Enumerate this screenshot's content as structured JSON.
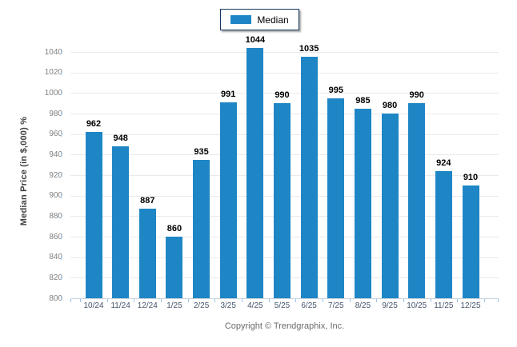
{
  "legend": {
    "label": "Median",
    "swatch_color": "#1f86c6"
  },
  "y_axis": {
    "title": "Median Price (in $,000) %",
    "tick_labels": [
      "800",
      "820",
      "840",
      "860",
      "880",
      "900",
      "920",
      "940",
      "960",
      "980",
      "1000",
      "1020",
      "1040"
    ]
  },
  "footer": {
    "copyright": "Copyright © Trendgraphix, Inc."
  },
  "chart_data": {
    "type": "bar",
    "title": "",
    "categories": [
      "10/24",
      "11/24",
      "12/24",
      "1/25",
      "2/25",
      "3/25",
      "4/25",
      "5/25",
      "6/25",
      "7/25",
      "8/25",
      "9/25",
      "10/25",
      "11/25",
      "12/25"
    ],
    "series": [
      {
        "name": "Median",
        "values": [
          962,
          948,
          887,
          860,
          935,
          991,
          1044,
          990,
          1035,
          995,
          985,
          980,
          990,
          924,
          910
        ],
        "color": "#1f86c6"
      }
    ],
    "xlabel": "",
    "ylabel": "Median Price (in $,000) %",
    "ylim": [
      800,
      1050
    ],
    "ytick_step": 20,
    "grid": true,
    "data_labels": true,
    "legend_position": "top-center"
  }
}
